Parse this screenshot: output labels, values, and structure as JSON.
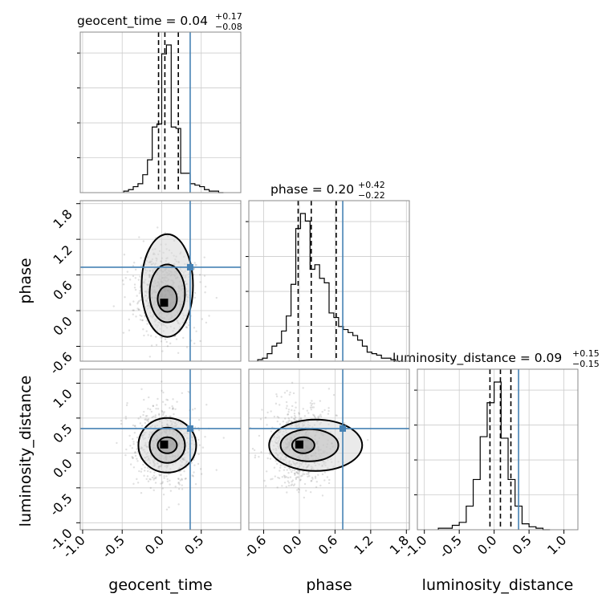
{
  "chart_data": {
    "type": "corner",
    "parameters": [
      "geocent_time",
      "phase",
      "luminosity_distance"
    ],
    "truths": {
      "geocent_time": 0.36,
      "phase": 0.73,
      "luminosity_distance": 0.35
    },
    "titles": [
      {
        "param": "geocent_time",
        "text": "geocent_time = 0.04",
        "plus": "+0.17",
        "minus": "−0.08"
      },
      {
        "param": "phase",
        "text": "phase = 0.20",
        "plus": "+0.42",
        "minus": "−0.22"
      },
      {
        "param": "luminosity_distance",
        "text": "luminosity_distance = 0.09",
        "plus": "+0.15",
        "minus": "−0.15"
      }
    ],
    "quantiles": {
      "geocent_time": [
        -0.04,
        0.04,
        0.21
      ],
      "phase": [
        -0.02,
        0.2,
        0.62
      ],
      "luminosity_distance": [
        -0.06,
        0.09,
        0.24
      ]
    },
    "ranges": {
      "geocent_time": [
        -1.03,
        1.0
      ],
      "phase": [
        -0.85,
        1.85
      ],
      "luminosity_distance": [
        -1.1,
        1.2
      ]
    },
    "ticks": {
      "geocent_time": [
        "-1.0",
        "-0.5",
        "0.0",
        "0.5"
      ],
      "phase": [
        "-0.6",
        "0.0",
        "0.6",
        "1.2",
        "1.8"
      ],
      "luminosity_distance": [
        "-1.0",
        "-0.5",
        "0.0",
        "0.5",
        "1.0"
      ]
    },
    "tick_values": {
      "geocent_time": [
        -1.0,
        -0.5,
        0.0,
        0.5
      ],
      "phase": [
        -0.6,
        0.0,
        0.6,
        1.2,
        1.8
      ],
      "luminosity_distance": [
        -1.0,
        -0.5,
        0.0,
        0.5,
        1.0
      ]
    },
    "histograms": {
      "geocent_time": {
        "edges": [
          -0.48,
          -0.42,
          -0.36,
          -0.3,
          -0.24,
          -0.18,
          -0.12,
          -0.06,
          0.0,
          0.06,
          0.12,
          0.18,
          0.24,
          0.3,
          0.36,
          0.42,
          0.48,
          0.54,
          0.6,
          0.66,
          0.72,
          0.78
        ],
        "counts": [
          0.01,
          0.02,
          0.04,
          0.06,
          0.12,
          0.22,
          0.44,
          0.46,
          0.93,
          0.99,
          0.44,
          0.43,
          0.13,
          0.13,
          0.06,
          0.05,
          0.04,
          0.02,
          0.01,
          0.01,
          0.0
        ]
      },
      "phase": {
        "edges": [
          -0.7,
          -0.62,
          -0.54,
          -0.46,
          -0.38,
          -0.3,
          -0.22,
          -0.14,
          -0.06,
          0.02,
          0.1,
          0.18,
          0.26,
          0.34,
          0.42,
          0.5,
          0.58,
          0.66,
          0.74,
          0.82,
          0.9,
          0.98,
          1.06,
          1.14,
          1.22,
          1.3,
          1.38,
          1.46,
          1.54,
          1.62,
          1.7
        ],
        "counts": [
          0.01,
          0.02,
          0.05,
          0.1,
          0.12,
          0.2,
          0.3,
          0.51,
          0.88,
          0.98,
          0.93,
          0.61,
          0.64,
          0.55,
          0.52,
          0.32,
          0.29,
          0.23,
          0.21,
          0.19,
          0.17,
          0.14,
          0.1,
          0.06,
          0.05,
          0.04,
          0.02,
          0.02,
          0.01,
          0.0
        ]
      },
      "luminosity_distance": {
        "edges": [
          -0.8,
          -0.7,
          -0.6,
          -0.5,
          -0.4,
          -0.3,
          -0.2,
          -0.1,
          0.0,
          0.1,
          0.2,
          0.3,
          0.4,
          0.5,
          0.6,
          0.7,
          0.8
        ],
        "counts": [
          0.01,
          0.01,
          0.03,
          0.05,
          0.16,
          0.34,
          0.63,
          0.86,
          1.0,
          0.62,
          0.34,
          0.16,
          0.04,
          0.02,
          0.01,
          0.0
        ]
      }
    },
    "pairs": [
      {
        "x": "geocent_time",
        "y": "phase",
        "peak": [
          0.03,
          0.12
        ]
      },
      {
        "x": "geocent_time",
        "y": "luminosity_distance",
        "peak": [
          0.03,
          0.11
        ]
      },
      {
        "x": "phase",
        "y": "luminosity_distance",
        "peak": [
          0.0,
          0.11
        ]
      }
    ]
  }
}
